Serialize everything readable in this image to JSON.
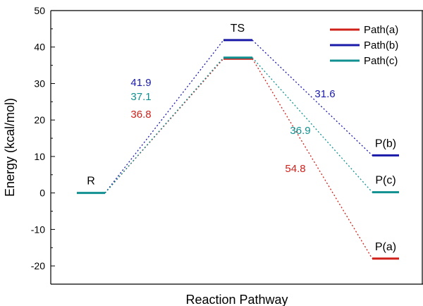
{
  "chart_data": {
    "type": "line",
    "ylabel": "Energy (kcal/mol)",
    "xlabel": "Reaction Pathway",
    "ylim": [
      -25,
      50
    ],
    "yticks": [
      -20,
      -10,
      0,
      10,
      20,
      30,
      40,
      50
    ],
    "grid": false,
    "legend": "top-right",
    "states": {
      "R": "R",
      "TS": "TS"
    },
    "series": [
      {
        "name": "Path(a)",
        "color": "#d0201a",
        "levels": [
          0,
          36.8,
          -18
        ],
        "product_label": "P(a)",
        "barrier_label": "36.8",
        "descent_label": "54.8"
      },
      {
        "name": "Path(b)",
        "color": "#1a1aa8",
        "levels": [
          0,
          41.9,
          10.3
        ],
        "product_label": "P(b)",
        "barrier_label": "41.9",
        "descent_label": "31.6"
      },
      {
        "name": "Path(c)",
        "color": "#109090",
        "levels": [
          0,
          37.1,
          0.2
        ],
        "product_label": "P(c)",
        "barrier_label": "37.1",
        "descent_label": "36.9"
      }
    ]
  }
}
